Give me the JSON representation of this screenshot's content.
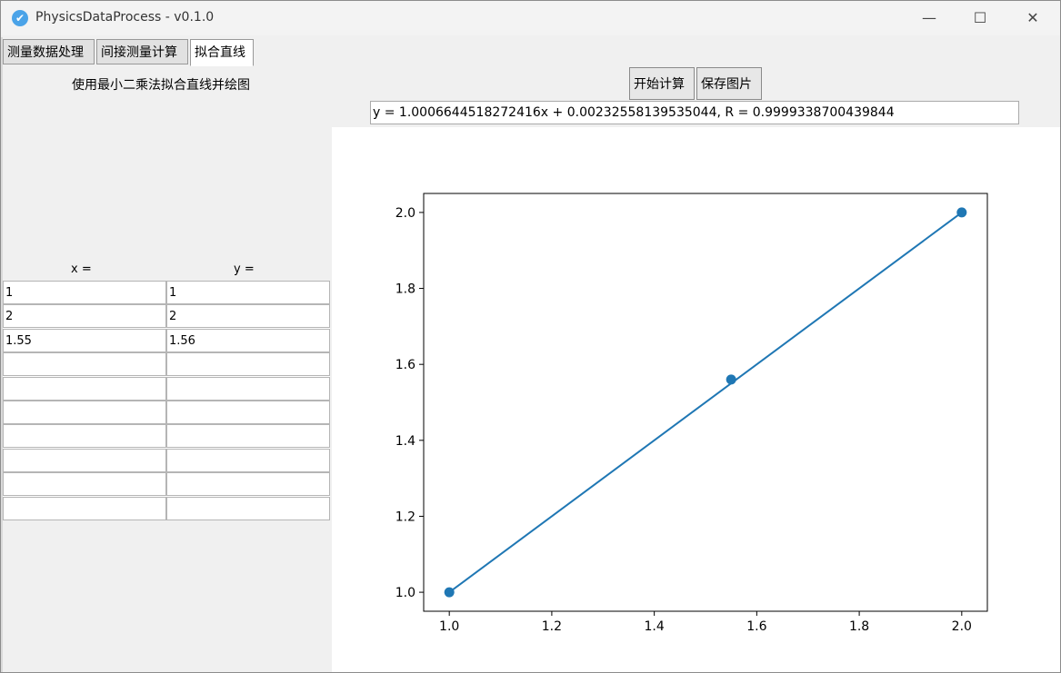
{
  "window": {
    "title": "PhysicsDataProcess - v0.1.0"
  },
  "tabs": [
    {
      "label": "测量数据处理",
      "active": false
    },
    {
      "label": "间接测量计算",
      "active": false
    },
    {
      "label": "拟合直线",
      "active": true
    }
  ],
  "panel": {
    "description": "使用最小二乘法拟合直线并绘图",
    "buttons": {
      "compute": "开始计算",
      "save": "保存图片"
    },
    "result": "y = 1.0006644518272416x + 0.00232558139535044, R = 0.9999338700439844"
  },
  "table": {
    "headers": {
      "x": "x =",
      "y": "y ="
    },
    "rows": [
      {
        "x": "1",
        "y": "1"
      },
      {
        "x": "2",
        "y": "2"
      },
      {
        "x": "1.55",
        "y": "1.56"
      },
      {
        "x": "",
        "y": ""
      },
      {
        "x": "",
        "y": ""
      },
      {
        "x": "",
        "y": ""
      },
      {
        "x": "",
        "y": ""
      },
      {
        "x": "",
        "y": ""
      },
      {
        "x": "",
        "y": ""
      },
      {
        "x": "",
        "y": ""
      }
    ]
  },
  "chart_data": {
    "type": "scatter",
    "points": [
      {
        "x": 1,
        "y": 1
      },
      {
        "x": 1.55,
        "y": 1.56
      },
      {
        "x": 2,
        "y": 2
      }
    ],
    "fit_line": {
      "x": [
        1,
        2
      ],
      "y": [
        1.0,
        2.0
      ]
    },
    "xlim": [
      0.95,
      2.05
    ],
    "ylim": [
      0.95,
      2.05
    ],
    "xticks": [
      "1.0",
      "1.2",
      "1.4",
      "1.6",
      "1.8",
      "2.0"
    ],
    "yticks": [
      "1.0",
      "1.2",
      "1.4",
      "1.6",
      "1.8",
      "2.0"
    ],
    "title": "",
    "xlabel": "",
    "ylabel": "",
    "color": "#1f77b4",
    "grid": false
  }
}
